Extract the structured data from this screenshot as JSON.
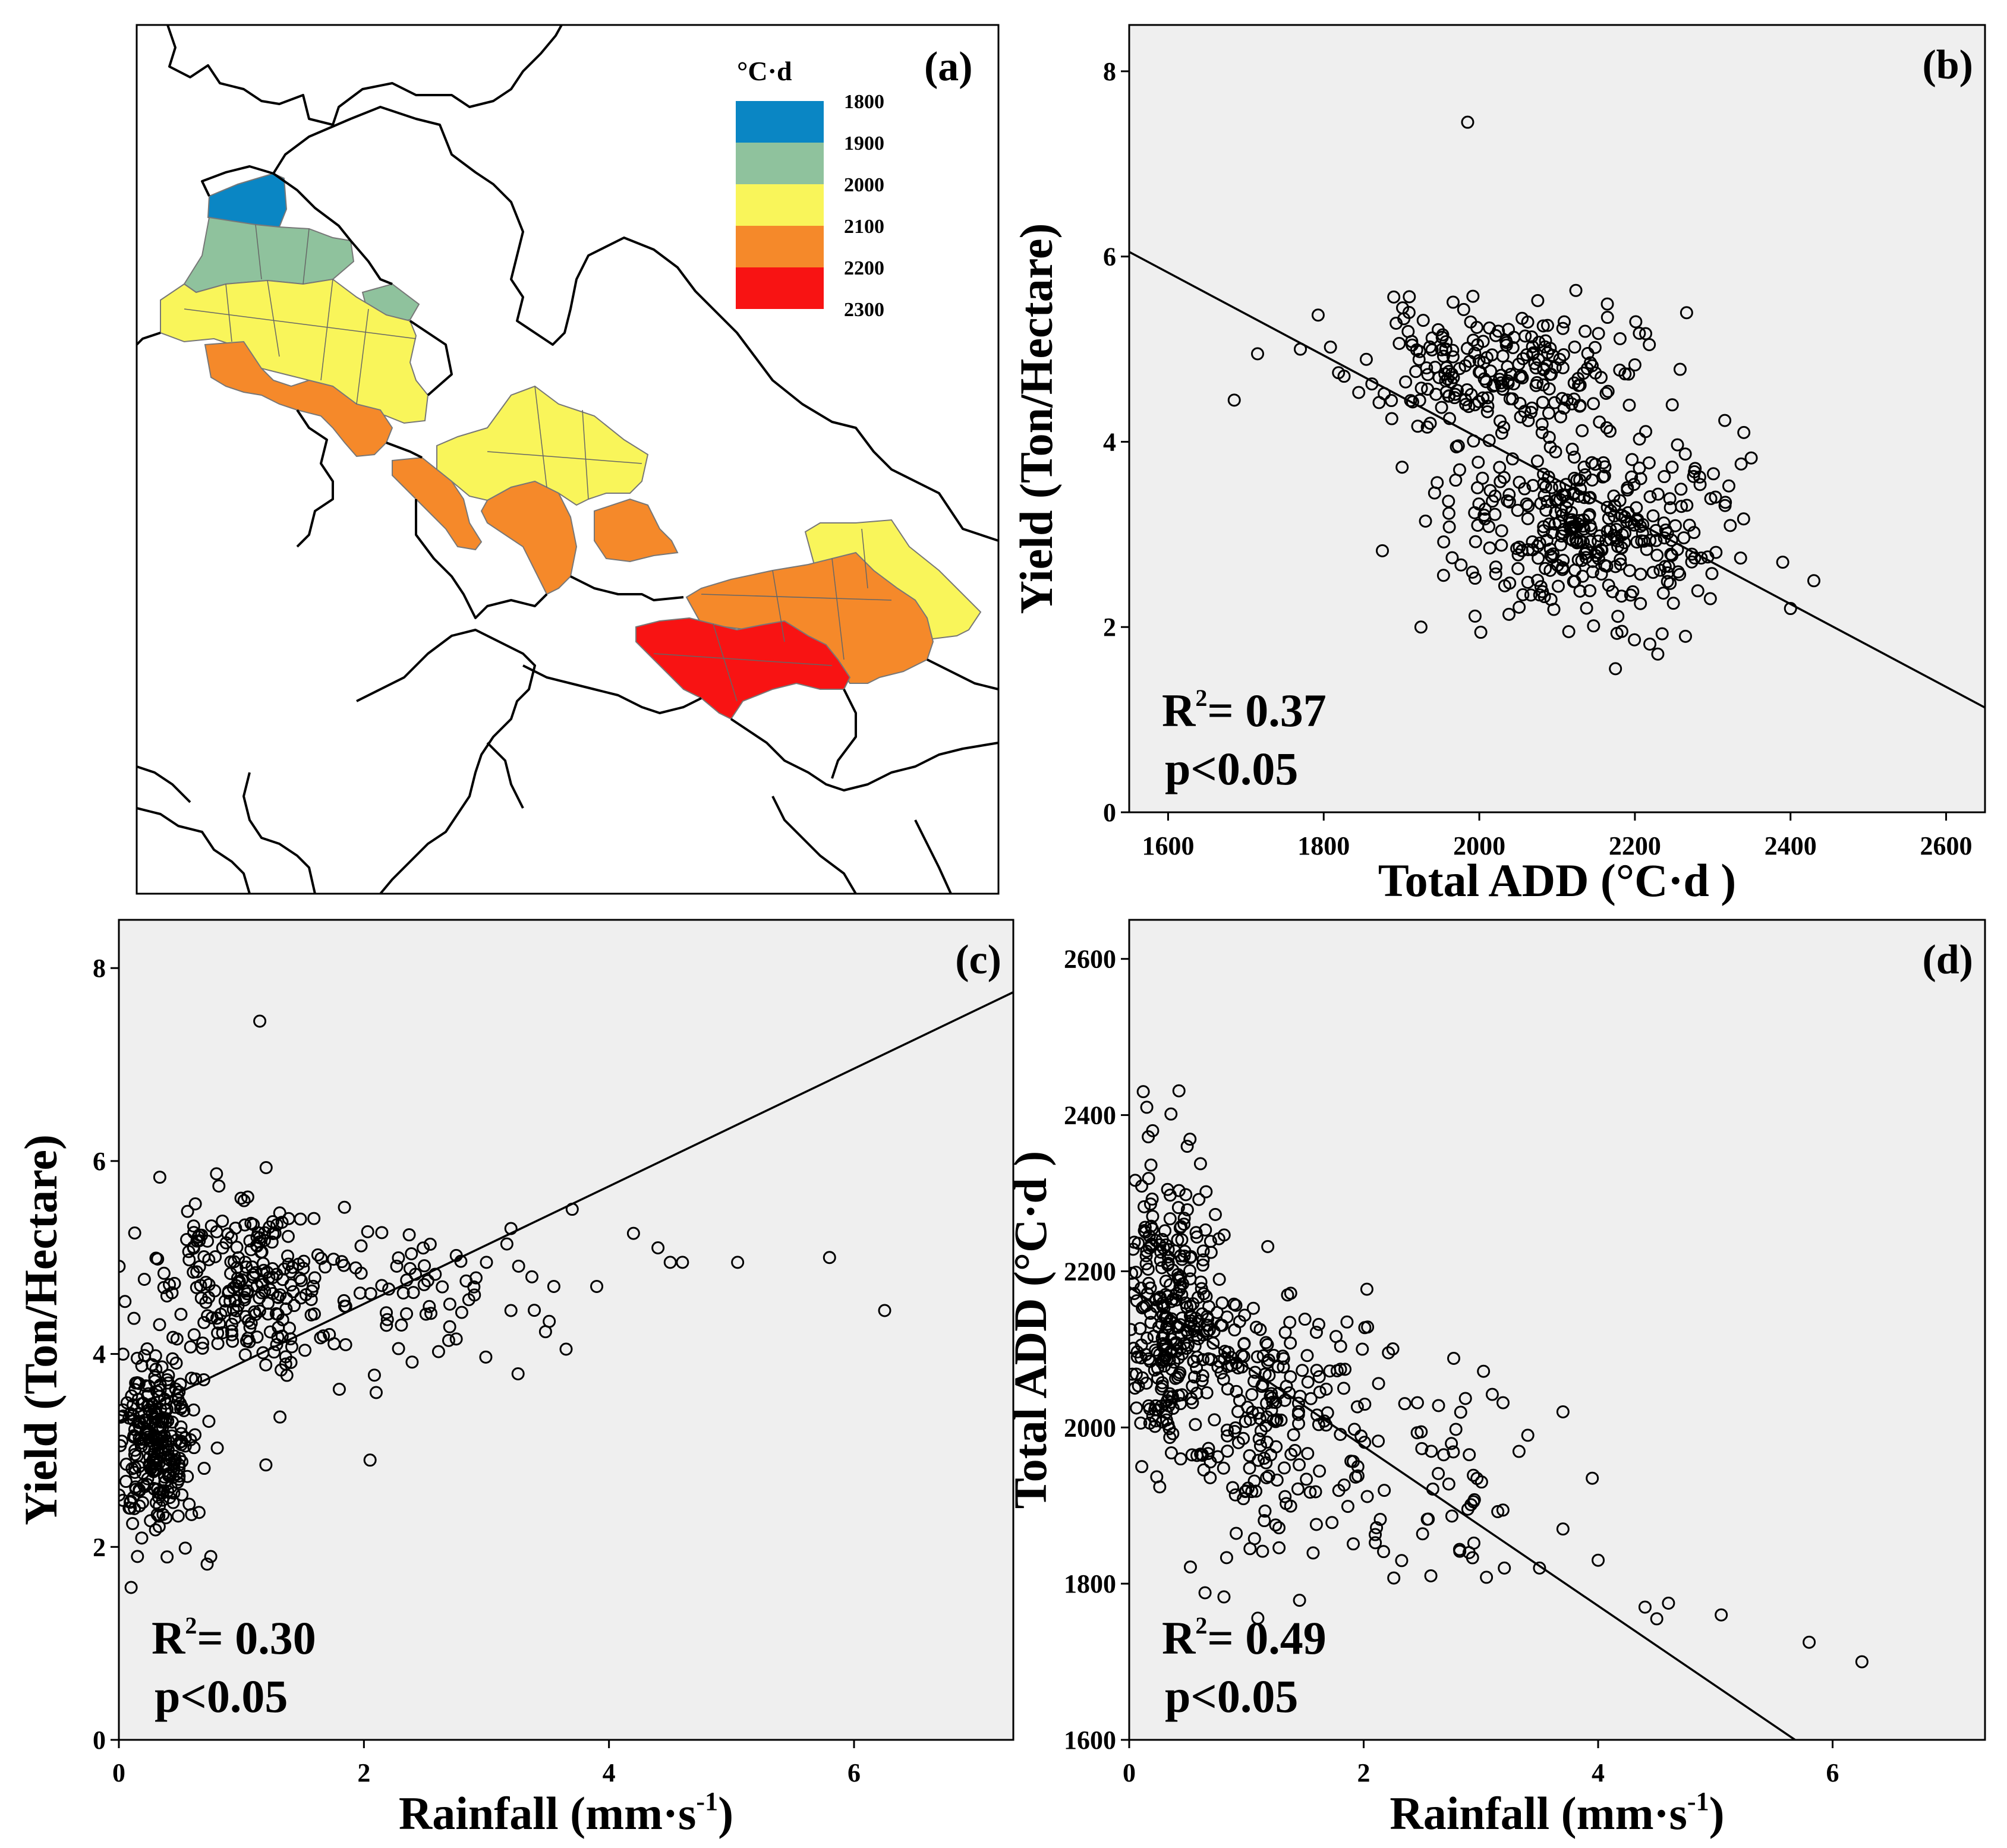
{
  "panel_a": {
    "tag": "(a)",
    "legend_title": "°C·d",
    "legend": [
      {
        "label": "1800",
        "color": "#0a86c4"
      },
      {
        "label": "1900",
        "color": "#8fc29d"
      },
      {
        "label": "2000",
        "color": "#f9f55a"
      },
      {
        "label": "2100",
        "color": "#f5892a"
      },
      {
        "label": "2200",
        "color": "#f81313"
      },
      {
        "label": "2300",
        "color": null
      }
    ]
  },
  "chart_data": [
    {
      "id": "b",
      "type": "scatter",
      "tag": "(b)",
      "xlabel": "Total ADD (°C·d )",
      "ylabel": "Yield (Ton/Hectare)",
      "xlim": [
        1550,
        2650
      ],
      "ylim": [
        0,
        8.5
      ],
      "xticks": [
        1600,
        1800,
        2000,
        2200,
        2400,
        2600
      ],
      "yticks": [
        0,
        2,
        4,
        6,
        8
      ],
      "r2_label": "R",
      "r2_value": "= 0.37",
      "p_label": "p<0.05",
      "fit": {
        "x": [
          1550,
          2650
        ],
        "y": [
          6.05,
          1.13
        ]
      },
      "clusters": [
        {
          "n": 230,
          "cx": 2020,
          "sx": 85,
          "cy": 4.75,
          "sy": 0.36,
          "seed": 11
        },
        {
          "n": 330,
          "cx": 2140,
          "sx": 85,
          "cy": 3.05,
          "sy": 0.45,
          "seed": 12
        }
      ],
      "points": [
        [
          1985,
          7.45
        ],
        [
          1685,
          4.45
        ],
        [
          2175,
          1.55
        ],
        [
          1925,
          2.0
        ],
        [
          2430,
          2.5
        ],
        [
          2400,
          2.2
        ],
        [
          2340,
          4.1
        ],
        [
          2390,
          2.7
        ],
        [
          1715,
          4.95
        ],
        [
          1770,
          5.0
        ],
        [
          2265,
          1.9
        ],
        [
          2115,
          1.95
        ]
      ]
    },
    {
      "id": "c",
      "type": "scatter",
      "tag": "(c)",
      "xlabel": "Rainfall (mm·s",
      "xlabel_sup": "-1",
      "xlabel_end": ")",
      "ylabel": "Yield (Ton/Hectare)",
      "xlim": [
        0,
        7.3
      ],
      "ylim": [
        0,
        8.5
      ],
      "xticks": [
        0,
        2,
        4,
        6
      ],
      "yticks": [
        0,
        2,
        4,
        6,
        8
      ],
      "r2_label": "R",
      "r2_value": "= 0.30",
      "p_label": "p<0.05",
      "fit": {
        "x": [
          0,
          7.3
        ],
        "y": [
          3.3,
          7.75
        ]
      },
      "clusters": [
        {
          "n": 260,
          "cx": 0.3,
          "sx": 0.17,
          "cy": 3.05,
          "sy": 0.5,
          "seed": 21
        },
        {
          "n": 220,
          "cx": 1.0,
          "sx": 0.38,
          "cy": 4.75,
          "sy": 0.42,
          "seed": 22
        },
        {
          "n": 70,
          "cx": 2.3,
          "sx": 0.55,
          "cy": 4.6,
          "sy": 0.45,
          "seed": 23
        }
      ],
      "points": [
        [
          1.15,
          7.45
        ],
        [
          0.1,
          1.58
        ],
        [
          0.75,
          1.9
        ],
        [
          1.2,
          2.85
        ],
        [
          2.05,
          2.9
        ],
        [
          2.1,
          3.6
        ],
        [
          3.65,
          4.05
        ],
        [
          3.7,
          5.5
        ],
        [
          3.9,
          4.7
        ],
        [
          4.2,
          5.25
        ],
        [
          4.4,
          5.1
        ],
        [
          4.5,
          4.95
        ],
        [
          4.6,
          4.95
        ],
        [
          5.05,
          4.95
        ],
        [
          5.8,
          5.0
        ],
        [
          6.25,
          4.45
        ],
        [
          3.2,
          4.45
        ],
        [
          3.55,
          4.7
        ],
        [
          3.2,
          5.3
        ],
        [
          3.0,
          4.95
        ]
      ]
    },
    {
      "id": "d",
      "type": "scatter",
      "tag": "(d)",
      "xlabel": "Rainfall (mm·s",
      "xlabel_sup": "-1",
      "xlabel_end": ")",
      "ylabel": "Total ADD (°C·d )",
      "xlim": [
        0,
        7.3
      ],
      "ylim": [
        1600,
        2650
      ],
      "xticks": [
        0,
        2,
        4,
        6
      ],
      "yticks": [
        1600,
        1800,
        2000,
        2200,
        2400,
        2600
      ],
      "r2_label": "R",
      "r2_value": "= 0.49",
      "p_label": "p<0.05",
      "fit": {
        "x": [
          0,
          5.68
        ],
        "y": [
          2180,
          1600
        ]
      },
      "clusters": [
        {
          "n": 280,
          "cx": 0.35,
          "sx": 0.22,
          "cy": 2150,
          "sy": 90,
          "seed": 31
        },
        {
          "n": 220,
          "cx": 1.15,
          "sx": 0.48,
          "cy": 2030,
          "sy": 85,
          "seed": 32
        },
        {
          "n": 60,
          "cx": 2.5,
          "sx": 0.6,
          "cy": 1930,
          "sy": 65,
          "seed": 33
        }
      ],
      "points": [
        [
          0.12,
          2430
        ],
        [
          0.15,
          2410
        ],
        [
          0.2,
          2380
        ],
        [
          5.8,
          1725
        ],
        [
          6.25,
          1700
        ],
        [
          5.05,
          1760
        ],
        [
          4.6,
          1775
        ],
        [
          4.5,
          1755
        ],
        [
          4.4,
          1770
        ],
        [
          4.0,
          1830
        ],
        [
          3.95,
          1935
        ],
        [
          3.7,
          2020
        ],
        [
          3.7,
          1870
        ],
        [
          3.5,
          1820
        ],
        [
          3.2,
          1820
        ],
        [
          3.4,
          1990
        ]
      ]
    }
  ]
}
